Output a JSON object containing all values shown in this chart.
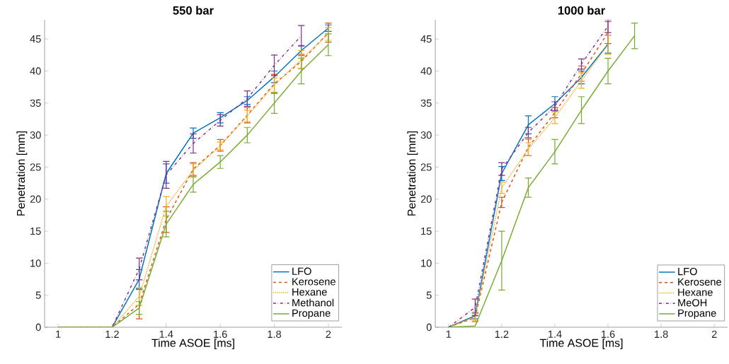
{
  "chart_data": [
    {
      "type": "line",
      "title": "550 bar",
      "xlabel": "Time ASOE [ms]",
      "ylabel": "Penetration [mm]",
      "x": [
        1,
        1.1,
        1.2,
        1.3,
        1.4,
        1.5,
        1.6,
        1.7,
        1.8,
        1.9,
        2.0
      ],
      "xlim": [
        0.95,
        2.05
      ],
      "xticks": [
        1,
        1.2,
        1.4,
        1.6,
        1.8,
        2
      ],
      "ylim": [
        0,
        48
      ],
      "yticks": [
        0,
        5,
        10,
        15,
        20,
        25,
        30,
        35,
        40,
        45
      ],
      "legend": "bottom right",
      "marker": "none",
      "grid": false,
      "series": [
        {
          "name": "LFO",
          "color": "#0072bd",
          "line_style": "solid",
          "values": [
            0,
            0,
            0,
            7.5,
            24.0,
            30.3,
            32.7,
            35.4,
            39.1,
            43.2,
            46.7
          ],
          "errors": [
            null,
            null,
            null,
            1.5,
            1.5,
            0.8,
            0.8,
            0.6,
            0.9,
            0.8,
            0.5
          ]
        },
        {
          "name": "Kerosene",
          "color": "#d95319",
          "line_style": "dashed",
          "values": [
            0,
            0,
            0,
            3.6,
            16.8,
            24.7,
            28.4,
            33.1,
            38.0,
            41.5,
            46.0
          ],
          "errors": [
            null,
            null,
            null,
            2.3,
            2.0,
            1.0,
            0.9,
            1.2,
            1.5,
            1.1,
            1.5
          ]
        },
        {
          "name": "Hexane",
          "color": "#edb120",
          "line_style": "dotted",
          "values": [
            0,
            0,
            0,
            4.8,
            18.9,
            24.5,
            28.3,
            33.0,
            37.8,
            41.8,
            45.8
          ],
          "errors": [
            null,
            null,
            null,
            1.4,
            1.5,
            1.0,
            0.6,
            0.9,
            1.1,
            1.4,
            1.0
          ]
        },
        {
          "name": "Methanol",
          "color": "#7e2f8e",
          "line_style": "dashdot",
          "values": [
            0,
            0,
            0,
            9.1,
            23.8,
            28.7,
            32.3,
            35.7,
            40.9,
            45.5,
            null
          ],
          "errors": [
            null,
            null,
            null,
            1.7,
            2.1,
            1.5,
            0.9,
            1.2,
            1.6,
            1.6,
            null
          ]
        },
        {
          "name": "Propane",
          "color": "#77ac30",
          "line_style": "solid",
          "values": [
            0,
            0,
            0,
            3.0,
            16.1,
            22.3,
            25.8,
            30.0,
            35.0,
            40.0,
            44.1
          ],
          "errors": [
            null,
            null,
            null,
            1.0,
            2.0,
            1.2,
            1.0,
            1.2,
            1.6,
            2.0,
            1.7
          ]
        }
      ]
    },
    {
      "type": "line",
      "title": "1000 bar",
      "xlabel": "Time ASOE [ms]",
      "ylabel": "Penetration [mm]",
      "x": [
        1,
        1.1,
        1.2,
        1.3,
        1.4,
        1.5,
        1.6,
        1.7
      ],
      "xlim": [
        0.95,
        2.05
      ],
      "xticks": [
        1,
        1.2,
        1.4,
        1.6,
        1.8,
        2
      ],
      "ylim": [
        0,
        48
      ],
      "yticks": [
        0,
        5,
        10,
        15,
        20,
        25,
        30,
        35,
        40,
        45
      ],
      "legend": "bottom right",
      "marker": "none",
      "grid": false,
      "series": [
        {
          "name": "LFO",
          "color": "#0072bd",
          "line_style": "solid",
          "values": [
            0,
            1.8,
            24.0,
            31.6,
            34.9,
            39.0,
            44.2,
            null
          ],
          "errors": [
            null,
            0.5,
            1.1,
            1.4,
            1.1,
            1.0,
            1.4,
            null
          ]
        },
        {
          "name": "Kerosene",
          "color": "#d95319",
          "line_style": "dashed",
          "values": [
            0,
            1.5,
            19.5,
            28.1,
            33.5,
            39.6,
            46.0,
            null
          ],
          "errors": [
            null,
            0.6,
            0.8,
            1.3,
            0.8,
            1.2,
            1.7,
            null
          ]
        },
        {
          "name": "Hexane",
          "color": "#edb120",
          "line_style": "dotted",
          "values": [
            0,
            1.6,
            21.8,
            27.8,
            32.7,
            38.5,
            44.1,
            null
          ],
          "errors": [
            null,
            0.6,
            0.9,
            1.0,
            0.9,
            1.2,
            1.5,
            null
          ]
        },
        {
          "name": "MeOH",
          "color": "#7e2f8e",
          "line_style": "dashdot",
          "values": [
            0,
            3.1,
            24.7,
            30.4,
            34.5,
            41.1,
            47.0,
            null
          ],
          "errors": [
            null,
            1.3,
            1.0,
            0.8,
            0.7,
            0.8,
            1.0,
            null
          ]
        },
        {
          "name": "Propane",
          "color": "#77ac30",
          "line_style": "solid",
          "values": [
            0,
            0.2,
            10.4,
            21.8,
            27.4,
            33.9,
            40.0,
            45.5
          ],
          "errors": [
            null,
            null,
            4.6,
            1.5,
            1.9,
            2.1,
            2.0,
            2.0
          ]
        }
      ]
    }
  ]
}
